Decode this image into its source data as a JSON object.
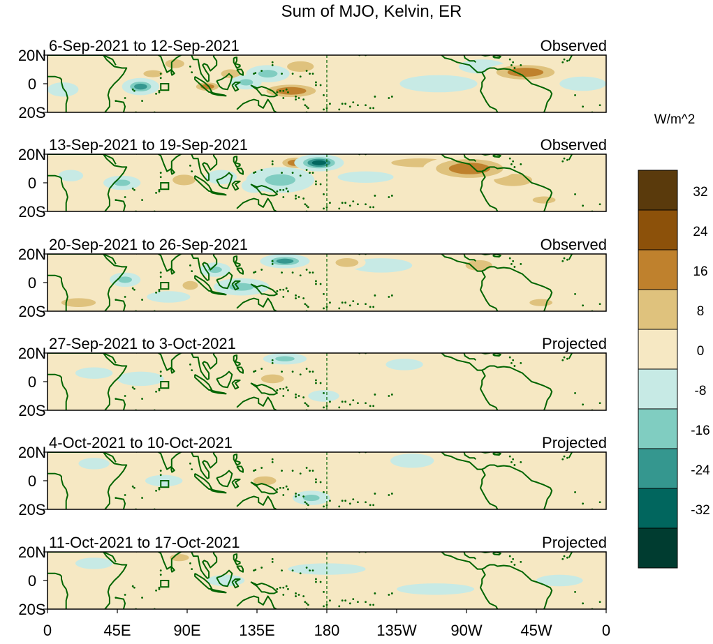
{
  "chart_data": {
    "type": "heatmap",
    "title": "Sum of MJO, Kelvin, ER",
    "units_label": "W/m^2",
    "lat_tick_labels": [
      "20N",
      "0",
      "20S"
    ],
    "lat_range": [
      -20,
      20
    ],
    "lon_range": [
      0,
      360
    ],
    "x_ticks": [
      {
        "lon": 0,
        "label": "0"
      },
      {
        "lon": 45,
        "label": "45E"
      },
      {
        "lon": 90,
        "label": "90E"
      },
      {
        "lon": 135,
        "label": "135E"
      },
      {
        "lon": 180,
        "label": "180"
      },
      {
        "lon": 225,
        "label": "135W"
      },
      {
        "lon": 270,
        "label": "90W"
      },
      {
        "lon": 315,
        "label": "45W"
      },
      {
        "lon": 360,
        "label": "0"
      }
    ],
    "colorbar": {
      "tick_labels": [
        "32",
        "24",
        "16",
        "8",
        "0",
        "-8",
        "-16",
        "-24",
        "-32"
      ],
      "colors": [
        "#5a3a0c",
        "#8c510a",
        "#bf812d",
        "#dfc27d",
        "#f6e8c3",
        "#c7eae5",
        "#80cdc1",
        "#35978f",
        "#01665e",
        "#003c30"
      ]
    },
    "panels": [
      {
        "date_range": "6-Sep-2021 to 12-Sep-2021",
        "status": "Observed",
        "anomalies": [
          {
            "lon": 163,
            "lat": 12,
            "rx": 14,
            "ry": 6,
            "value": 14
          },
          {
            "lon": 157,
            "lat": -5,
            "rx": 22,
            "ry": 6,
            "value": 18
          },
          {
            "lon": 103,
            "lat": -2,
            "rx": 10,
            "ry": 4,
            "value": 16
          },
          {
            "lon": 118,
            "lat": 7,
            "rx": 10,
            "ry": 5,
            "value": 12
          },
          {
            "lon": 68,
            "lat": 7,
            "rx": 10,
            "ry": 4,
            "value": 10
          },
          {
            "lon": 82,
            "lat": 14,
            "rx": 10,
            "ry": 5,
            "value": 10
          },
          {
            "lon": 308,
            "lat": 8,
            "rx": 26,
            "ry": 7,
            "value": 16
          },
          {
            "lon": 220,
            "lat": 2,
            "rx": 40,
            "ry": 9,
            "value": 4
          },
          {
            "lon": 30,
            "lat": 5,
            "rx": 15,
            "ry": 6,
            "value": 6
          },
          {
            "lon": 60,
            "lat": -2,
            "rx": 12,
            "ry": 6,
            "value": -24
          },
          {
            "lon": 142,
            "lat": 7,
            "rx": 14,
            "ry": 6,
            "value": -18
          },
          {
            "lon": 128,
            "lat": 1,
            "rx": 10,
            "ry": 5,
            "value": -16
          },
          {
            "lon": 10,
            "lat": -4,
            "rx": 10,
            "ry": 5,
            "value": -12
          },
          {
            "lon": 252,
            "lat": 0,
            "rx": 25,
            "ry": 6,
            "value": -8
          },
          {
            "lon": 280,
            "lat": 12,
            "rx": 15,
            "ry": 5,
            "value": -10
          },
          {
            "lon": 345,
            "lat": 0,
            "rx": 15,
            "ry": 5,
            "value": -8
          }
        ]
      },
      {
        "date_range": "13-Sep-2021 to 19-Sep-2021",
        "status": "Observed",
        "anomalies": [
          {
            "lon": 175,
            "lat": 14,
            "rx": 16,
            "ry": 6,
            "value": -32
          },
          {
            "lon": 150,
            "lat": 2,
            "rx": 22,
            "ry": 9,
            "value": -20
          },
          {
            "lon": 133,
            "lat": -2,
            "rx": 8,
            "ry": 5,
            "value": -14
          },
          {
            "lon": 48,
            "lat": 0,
            "rx": 12,
            "ry": 5,
            "value": -16
          },
          {
            "lon": 112,
            "lat": 4,
            "rx": 10,
            "ry": 5,
            "value": -10
          },
          {
            "lon": 15,
            "lat": 5,
            "rx": 8,
            "ry": 4,
            "value": -8
          },
          {
            "lon": 205,
            "lat": 4,
            "rx": 18,
            "ry": 4,
            "value": -8
          },
          {
            "lon": 160,
            "lat": 14,
            "rx": 12,
            "ry": 5,
            "value": 16
          },
          {
            "lon": 272,
            "lat": 10,
            "rx": 30,
            "ry": 9,
            "value": 22
          },
          {
            "lon": 300,
            "lat": 2,
            "rx": 20,
            "ry": 7,
            "value": 14
          },
          {
            "lon": 240,
            "lat": 14,
            "rx": 30,
            "ry": 5,
            "value": 10
          },
          {
            "lon": 88,
            "lat": 2,
            "rx": 12,
            "ry": 6,
            "value": 12
          },
          {
            "lon": 30,
            "lat": -12,
            "rx": 15,
            "ry": 5,
            "value": 6
          },
          {
            "lon": 320,
            "lat": -12,
            "rx": 12,
            "ry": 4,
            "value": 12
          }
        ]
      },
      {
        "date_range": "20-Sep-2021 to 26-Sep-2021",
        "status": "Observed",
        "anomalies": [
          {
            "lon": 153,
            "lat": 15,
            "rx": 16,
            "ry": 5,
            "value": -28
          },
          {
            "lon": 125,
            "lat": -3,
            "rx": 18,
            "ry": 6,
            "value": -18
          },
          {
            "lon": 108,
            "lat": 9,
            "rx": 10,
            "ry": 5,
            "value": -16
          },
          {
            "lon": 50,
            "lat": 2,
            "rx": 10,
            "ry": 5,
            "value": -16
          },
          {
            "lon": 78,
            "lat": -10,
            "rx": 14,
            "ry": 4,
            "value": -12
          },
          {
            "lon": 215,
            "lat": 12,
            "rx": 20,
            "ry": 5,
            "value": -10
          },
          {
            "lon": 193,
            "lat": 14,
            "rx": 12,
            "ry": 5,
            "value": 14
          },
          {
            "lon": 92,
            "lat": -2,
            "rx": 8,
            "ry": 5,
            "value": 14
          },
          {
            "lon": 278,
            "lat": 12,
            "rx": 14,
            "ry": 6,
            "value": 14
          },
          {
            "lon": 318,
            "lat": -14,
            "rx": 12,
            "ry": 4,
            "value": 14
          },
          {
            "lon": 20,
            "lat": -14,
            "rx": 18,
            "ry": 5,
            "value": 8
          },
          {
            "lon": 240,
            "lat": 0,
            "rx": 40,
            "ry": 5,
            "value": 4
          }
        ]
      },
      {
        "date_range": "27-Sep-2021 to 3-Oct-2021",
        "status": "Projected",
        "anomalies": [
          {
            "lon": 153,
            "lat": 16,
            "rx": 14,
            "ry": 4,
            "value": -22
          },
          {
            "lon": 178,
            "lat": -10,
            "rx": 10,
            "ry": 4,
            "value": -14
          },
          {
            "lon": 230,
            "lat": 12,
            "rx": 12,
            "ry": 4,
            "value": -12
          },
          {
            "lon": 60,
            "lat": 2,
            "rx": 15,
            "ry": 5,
            "value": -10
          },
          {
            "lon": 30,
            "lat": 6,
            "rx": 12,
            "ry": 4,
            "value": -8
          },
          {
            "lon": 145,
            "lat": 2,
            "rx": 12,
            "ry": 5,
            "value": 10
          },
          {
            "lon": 80,
            "lat": 16,
            "rx": 12,
            "ry": 4,
            "value": 6
          },
          {
            "lon": 300,
            "lat": -8,
            "rx": 25,
            "ry": 6,
            "value": 6
          }
        ]
      },
      {
        "date_range": "4-Oct-2021 to 10-Oct-2021",
        "status": "Projected",
        "anomalies": [
          {
            "lon": 170,
            "lat": -12,
            "rx": 12,
            "ry": 5,
            "value": -16
          },
          {
            "lon": 235,
            "lat": 14,
            "rx": 14,
            "ry": 5,
            "value": -12
          },
          {
            "lon": 75,
            "lat": 0,
            "rx": 12,
            "ry": 4,
            "value": -10
          },
          {
            "lon": 30,
            "lat": 12,
            "rx": 10,
            "ry": 4,
            "value": -8
          },
          {
            "lon": 140,
            "lat": 0,
            "rx": 12,
            "ry": 5,
            "value": 12
          },
          {
            "lon": 85,
            "lat": 14,
            "rx": 10,
            "ry": 4,
            "value": 6
          },
          {
            "lon": 310,
            "lat": -8,
            "rx": 25,
            "ry": 6,
            "value": 6
          },
          {
            "lon": 215,
            "lat": 0,
            "rx": 20,
            "ry": 5,
            "value": 4
          }
        ]
      },
      {
        "date_range": "11-Oct-2021 to 17-Oct-2021",
        "status": "Projected",
        "anomalies": [
          {
            "lon": 70,
            "lat": -2,
            "rx": 10,
            "ry": 4,
            "value": 6
          },
          {
            "lon": 85,
            "lat": 16,
            "rx": 10,
            "ry": 4,
            "value": 8
          },
          {
            "lon": 250,
            "lat": -6,
            "rx": 25,
            "ry": 4,
            "value": -6
          },
          {
            "lon": 180,
            "lat": 8,
            "rx": 25,
            "ry": 4,
            "value": -5
          },
          {
            "lon": 115,
            "lat": 0,
            "rx": 12,
            "ry": 4,
            "value": -5
          },
          {
            "lon": 330,
            "lat": 0,
            "rx": 15,
            "ry": 4,
            "value": -4
          },
          {
            "lon": 30,
            "lat": 12,
            "rx": 12,
            "ry": 4,
            "value": -5
          }
        ]
      }
    ]
  }
}
